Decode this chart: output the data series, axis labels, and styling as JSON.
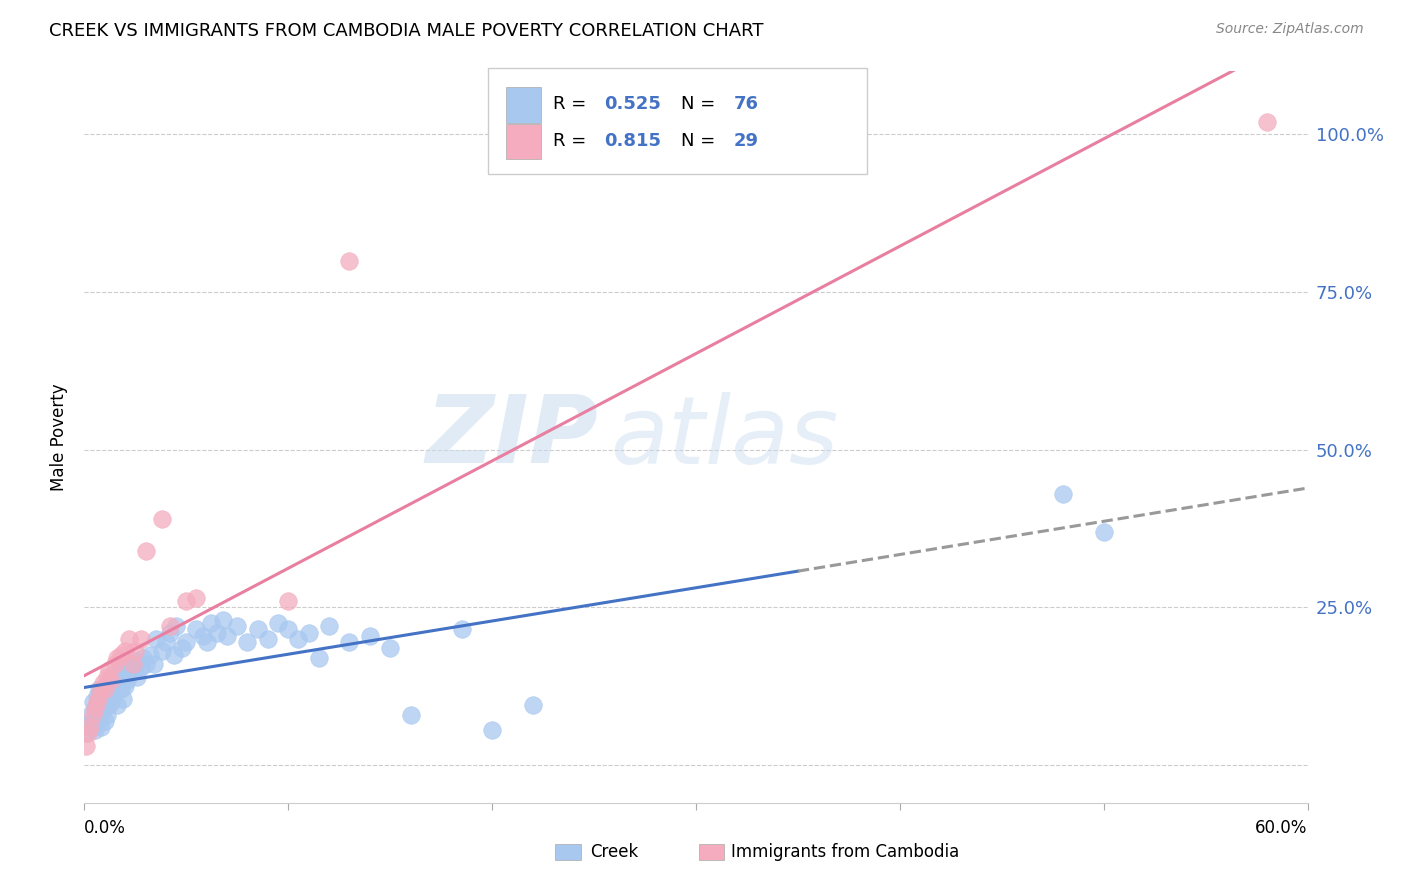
{
  "title": "CREEK VS IMMIGRANTS FROM CAMBODIA MALE POVERTY CORRELATION CHART",
  "source": "Source: ZipAtlas.com",
  "ylabel": "Male Poverty",
  "yticks": [
    0.0,
    0.25,
    0.5,
    0.75,
    1.0
  ],
  "ytick_labels": [
    "",
    "25.0%",
    "50.0%",
    "75.0%",
    "100.0%"
  ],
  "xmin": 0.0,
  "xmax": 0.6,
  "ymin": -0.06,
  "ymax": 1.1,
  "creek_color": "#A8C8F0",
  "cambodia_color": "#F4ACBE",
  "creek_line_color": "#4472C4",
  "cambodia_line_color": "#E87FA0",
  "creek_R": "0.525",
  "creek_N": "76",
  "cambodia_R": "0.815",
  "cambodia_N": "29",
  "watermark_zip": "ZIP",
  "watermark_atlas": "atlas",
  "label_color": "#4472C4",
  "creek_scatter_x": [
    0.001,
    0.002,
    0.003,
    0.004,
    0.004,
    0.005,
    0.005,
    0.006,
    0.006,
    0.007,
    0.007,
    0.008,
    0.008,
    0.009,
    0.01,
    0.01,
    0.011,
    0.011,
    0.012,
    0.012,
    0.013,
    0.013,
    0.014,
    0.015,
    0.015,
    0.016,
    0.017,
    0.018,
    0.018,
    0.019,
    0.02,
    0.02,
    0.021,
    0.022,
    0.024,
    0.025,
    0.026,
    0.028,
    0.029,
    0.03,
    0.032,
    0.034,
    0.035,
    0.038,
    0.04,
    0.042,
    0.044,
    0.045,
    0.048,
    0.05,
    0.055,
    0.058,
    0.06,
    0.062,
    0.065,
    0.068,
    0.07,
    0.075,
    0.08,
    0.085,
    0.09,
    0.095,
    0.1,
    0.105,
    0.11,
    0.115,
    0.12,
    0.13,
    0.14,
    0.15,
    0.16,
    0.185,
    0.2,
    0.22,
    0.48,
    0.5
  ],
  "creek_scatter_y": [
    0.05,
    0.065,
    0.08,
    0.06,
    0.1,
    0.055,
    0.09,
    0.07,
    0.11,
    0.075,
    0.12,
    0.06,
    0.095,
    0.085,
    0.115,
    0.07,
    0.125,
    0.08,
    0.13,
    0.095,
    0.1,
    0.14,
    0.11,
    0.115,
    0.145,
    0.095,
    0.13,
    0.12,
    0.155,
    0.105,
    0.125,
    0.16,
    0.135,
    0.145,
    0.15,
    0.165,
    0.14,
    0.155,
    0.17,
    0.16,
    0.175,
    0.16,
    0.2,
    0.18,
    0.195,
    0.21,
    0.175,
    0.22,
    0.185,
    0.195,
    0.215,
    0.205,
    0.195,
    0.225,
    0.21,
    0.23,
    0.205,
    0.22,
    0.195,
    0.215,
    0.2,
    0.225,
    0.215,
    0.2,
    0.21,
    0.17,
    0.22,
    0.195,
    0.205,
    0.185,
    0.08,
    0.215,
    0.055,
    0.095,
    0.43,
    0.37
  ],
  "cambodia_scatter_x": [
    0.001,
    0.002,
    0.003,
    0.004,
    0.005,
    0.006,
    0.007,
    0.008,
    0.009,
    0.01,
    0.011,
    0.012,
    0.013,
    0.015,
    0.016,
    0.018,
    0.02,
    0.022,
    0.024,
    0.025,
    0.028,
    0.03,
    0.038,
    0.042,
    0.05,
    0.055,
    0.1,
    0.13,
    0.58
  ],
  "cambodia_scatter_y": [
    0.03,
    0.05,
    0.06,
    0.08,
    0.09,
    0.1,
    0.11,
    0.12,
    0.13,
    0.12,
    0.14,
    0.15,
    0.135,
    0.16,
    0.17,
    0.175,
    0.18,
    0.2,
    0.16,
    0.18,
    0.2,
    0.34,
    0.39,
    0.22,
    0.26,
    0.265,
    0.26,
    0.8,
    1.02
  ]
}
